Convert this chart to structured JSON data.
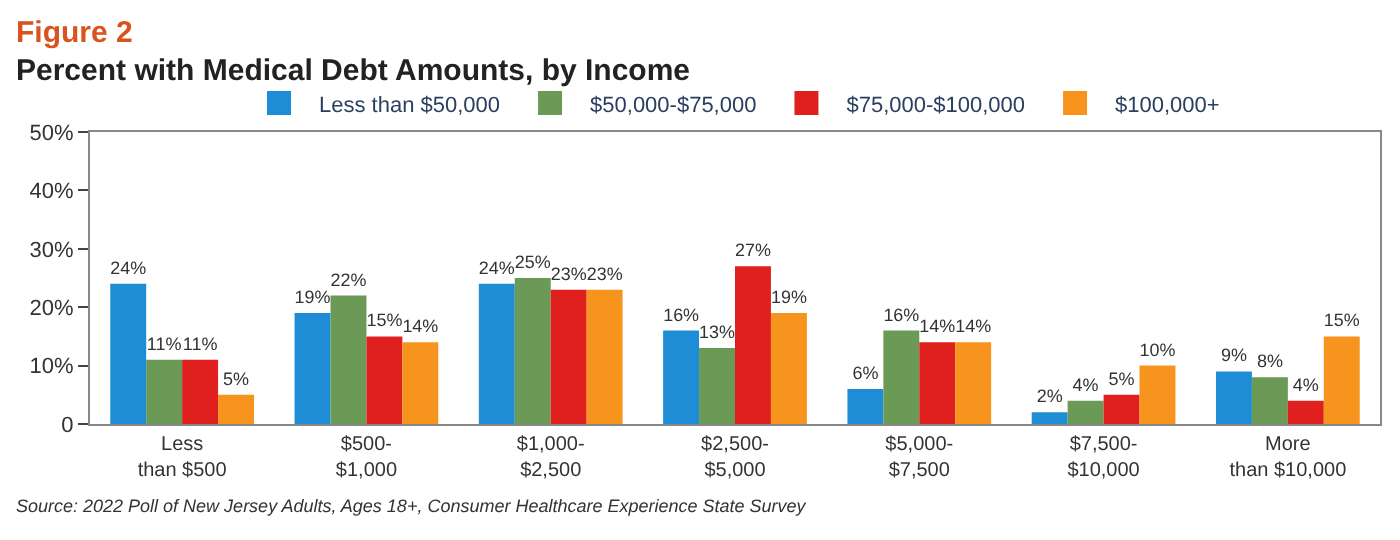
{
  "chart_data": {
    "type": "bar",
    "title": "Figure 2",
    "subtitle": "Percent with Medical Debt Amounts, by Income",
    "categories": [
      "Less than $500",
      "$500-$1,000",
      "$1,000-$2,500",
      "$2,500-$5,000",
      "$5,000-$7,500",
      "$7,500-$10,000",
      "More than $10,000"
    ],
    "series": [
      {
        "name": "Less than $50,000",
        "color": "#1f8dd6",
        "values": [
          24,
          19,
          24,
          16,
          6,
          2,
          9
        ],
        "value_labels": [
          "24%",
          "19%",
          "24%",
          "16%",
          "6%",
          "2%",
          "9%"
        ]
      },
      {
        "name": "$50,000-$75,000",
        "color": "#6a9a55",
        "values": [
          11,
          22,
          25,
          13,
          16,
          4,
          8
        ],
        "value_labels": [
          "11%",
          "22%",
          "25%",
          "13%",
          "16%",
          "4%",
          "8%"
        ]
      },
      {
        "name": "$75,000-$100,000",
        "color": "#e0201f",
        "values": [
          11,
          15,
          23,
          27,
          14,
          5,
          4
        ],
        "value_labels": [
          "11%",
          "15%",
          "23%",
          "27%",
          "14%",
          "5%",
          "4%"
        ]
      },
      {
        "name": "$100,000+",
        "color": "#f7941d",
        "values": [
          5,
          14,
          23,
          19,
          14,
          10,
          15
        ],
        "value_labels": [
          "5%",
          "14%",
          "23%",
          "19%",
          "14%",
          "10%",
          "15%"
        ]
      }
    ],
    "ylim": [
      0,
      50
    ],
    "yticks": [
      {
        "value": 0,
        "label": "0"
      },
      {
        "value": 10,
        "label": "10%"
      },
      {
        "value": 20,
        "label": "20%"
      },
      {
        "value": 30,
        "label": "30%"
      },
      {
        "value": 40,
        "label": "40%"
      },
      {
        "value": 50,
        "label": "50%"
      }
    ],
    "legend": "top",
    "annotations": [
      "Source: 2022 Poll of New Jersey Adults, Ages 18+, Consumer Healthcare Experience State Survey"
    ]
  }
}
